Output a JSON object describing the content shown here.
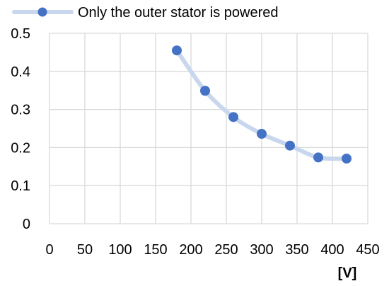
{
  "chart_data": {
    "type": "scatter",
    "series": [
      {
        "name": "Only the outer stator is powered",
        "x": [
          180,
          220,
          260,
          300,
          340,
          380,
          420
        ],
        "y": [
          0.455,
          0.349,
          0.28,
          0.236,
          0.205,
          0.174,
          0.171
        ]
      }
    ],
    "xlim": [
      0,
      450
    ],
    "ylim": [
      0,
      0.5
    ],
    "xticks": [
      "0",
      "50",
      "100",
      "150",
      "200",
      "250",
      "300",
      "350",
      "400",
      "450"
    ],
    "yticks": [
      "0",
      "0.1",
      "0.2",
      "0.3",
      "0.4",
      "0.5"
    ],
    "xlabel": "[V]",
    "ylabel": "",
    "grid": true,
    "legend_position": "top",
    "colors": {
      "marker": "#4472c4",
      "line": "#c9d7ee",
      "grid": "#d9d9d9"
    }
  }
}
